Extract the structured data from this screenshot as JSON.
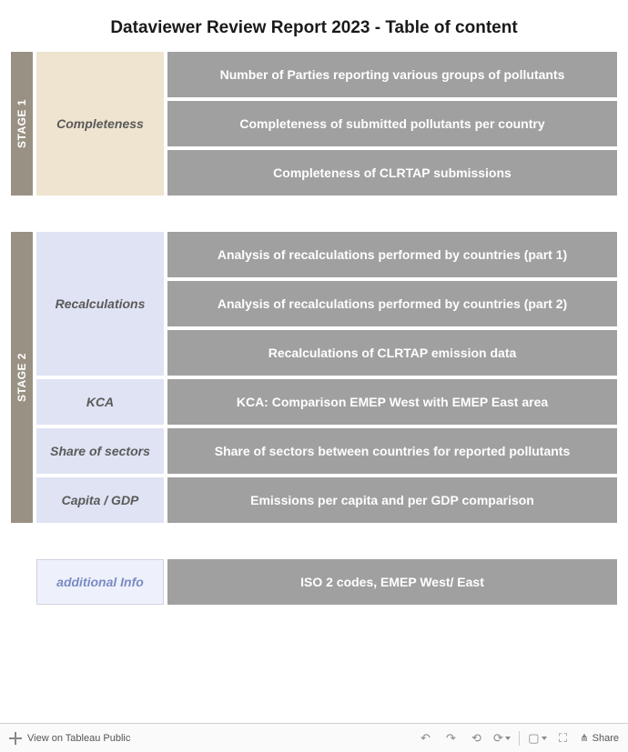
{
  "title": "Dataviewer Review Report 2023 - Table of content",
  "colors": {
    "stage_tab_bg": "#999284",
    "stage_tab_fg": "#ffffff",
    "cat_beige": "#eee4cf",
    "cat_blue": "#dfe3f3",
    "item_bg": "#a0a0a0",
    "item_fg": "#ffffff",
    "addl_bg": "#eef1fb",
    "addl_fg": "#7a8bc4"
  },
  "stage1": {
    "label": "STAGE 1",
    "groups": [
      {
        "category": "Completeness",
        "cat_style": "beige",
        "items": [
          "Number of Parties reporting various groups of pollutants",
          "Completeness of submitted pollutants per country",
          "Completeness of CLRTAP submissions"
        ]
      }
    ]
  },
  "stage2": {
    "label": "STAGE 2",
    "groups": [
      {
        "category": "Recalculations",
        "cat_style": "blue",
        "items": [
          "Analysis of recalculations performed by countries (part 1)",
          "Analysis of recalculations performed by countries (part 2)",
          "Recalculations of CLRTAP emission data"
        ]
      },
      {
        "category": "KCA",
        "cat_style": "blue",
        "items": [
          "KCA: Comparison EMEP West with EMEP East area"
        ]
      },
      {
        "category": "Share of sectors",
        "cat_style": "blue",
        "items": [
          "Share of sectors between countries for reported pollutants"
        ]
      },
      {
        "category": "Capita / GDP",
        "cat_style": "blue",
        "items": [
          "Emissions per capita and per GDP comparison"
        ]
      }
    ]
  },
  "additional": {
    "label": "additional Info",
    "items": [
      "ISO 2 codes, EMEP West/ East"
    ]
  },
  "toolbar": {
    "view_label": "View on Tableau Public",
    "share_label": "Share"
  }
}
